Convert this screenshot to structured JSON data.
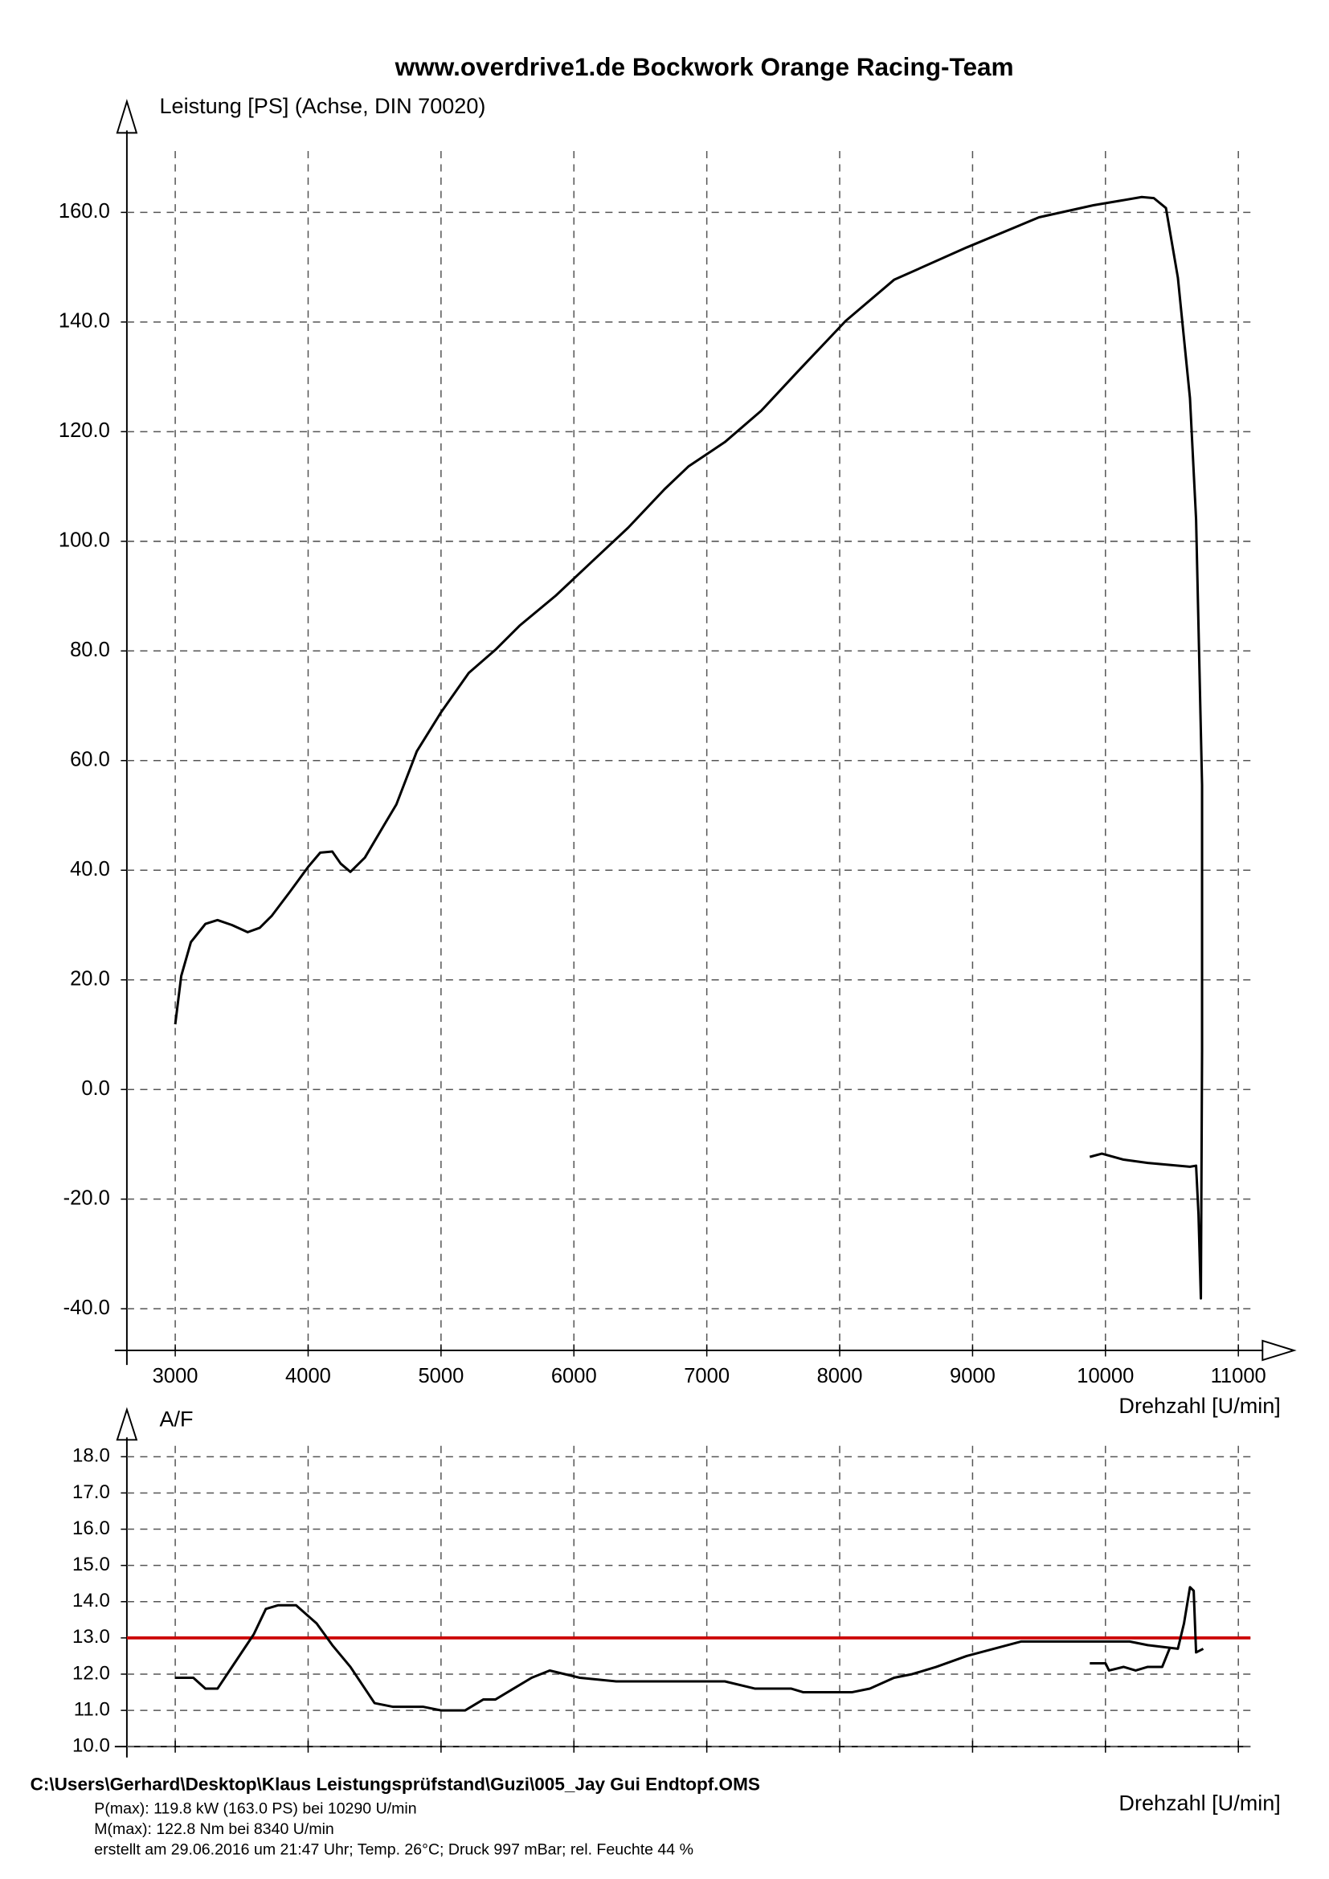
{
  "title": "www.overdrive1.de Bockwork Orange Racing-Team",
  "chart_data": [
    {
      "type": "line",
      "y_label": "Leistung [PS] (Achse, DIN 70020)",
      "x_label": "Drehzahl [U/min]",
      "color": "#000000",
      "grid": true,
      "x": [
        3000,
        3045,
        3118,
        3227,
        3318,
        3427,
        3545,
        3636,
        3727,
        3864,
        4000,
        4091,
        4182,
        4245,
        4318,
        4427,
        4573,
        4664,
        4818,
        5000,
        5209,
        5409,
        5591,
        5864,
        6136,
        6409,
        6682,
        6864,
        7136,
        7409,
        7682,
        8045,
        8409,
        8955,
        9500,
        9909,
        10273,
        10364,
        10455,
        10545,
        10636,
        10682,
        10727,
        10727,
        10718,
        10700,
        10682,
        10636,
        10318,
        10136,
        9973,
        9882
      ],
      "values": [
        11.9,
        20.7,
        26.9,
        30.2,
        30.9,
        30.0,
        28.7,
        29.5,
        31.7,
        36.1,
        40.6,
        43.2,
        43.4,
        41.2,
        39.7,
        42.3,
        48.3,
        52.0,
        61.7,
        68.8,
        76.0,
        80.2,
        84.6,
        90.1,
        96.3,
        102.5,
        109.5,
        113.7,
        118.1,
        123.8,
        130.9,
        140.2,
        147.7,
        153.6,
        159.1,
        161.3,
        162.8,
        162.6,
        160.8,
        148.1,
        126.1,
        104.0,
        55.5,
        7.1,
        -38.1,
        -22.7,
        -13.9,
        -14.1,
        -13.4,
        -12.8,
        -11.7,
        -12.3
      ],
      "xlim": [
        2636,
        11182
      ],
      "ylim": [
        -47.6,
        171.2
      ],
      "xticks": [
        3000,
        4000,
        5000,
        6000,
        7000,
        8000,
        9000,
        10000,
        11000
      ],
      "yticks": [
        {
          "value": -40,
          "label": "-40.0"
        },
        {
          "value": -20,
          "label": "-20.0"
        },
        {
          "value": 0,
          "label": "0.0"
        },
        {
          "value": 20,
          "label": "20.0"
        },
        {
          "value": 40,
          "label": "40.0"
        },
        {
          "value": 60,
          "label": "60.0"
        },
        {
          "value": 80,
          "label": "80.0"
        },
        {
          "value": 100,
          "label": "100.0"
        },
        {
          "value": 120,
          "label": "120.0"
        },
        {
          "value": 140,
          "label": "140.0"
        },
        {
          "value": 160,
          "label": "160.0"
        }
      ]
    },
    {
      "type": "line",
      "y_label": "A/F",
      "x_label": "Drehzahl [U/min]",
      "color": "#000000",
      "grid": true,
      "reference": 13,
      "reference_color": "#cc0000",
      "x": [
        3000,
        3136,
        3227,
        3318,
        3409,
        3591,
        3682,
        3773,
        3909,
        4064,
        4182,
        4318,
        4500,
        4636,
        4864,
        5000,
        5182,
        5318,
        5409,
        5545,
        5682,
        5818,
        6045,
        6318,
        7136,
        7364,
        7636,
        7727,
        8091,
        8227,
        8409,
        8545,
        8727,
        8955,
        9364,
        10182,
        10318,
        10545,
        10591,
        10636,
        10664,
        10682,
        10736,
        null,
        9882,
        10000,
        10027,
        10136,
        10227,
        10318,
        10427,
        10482
      ],
      "values": [
        11.9,
        11.9,
        11.6,
        11.6,
        12.1,
        13.1,
        13.8,
        13.9,
        13.9,
        13.4,
        12.8,
        12.2,
        11.2,
        11.1,
        11.1,
        11.0,
        11.0,
        11.3,
        11.3,
        11.6,
        11.9,
        12.1,
        11.9,
        11.8,
        11.8,
        11.6,
        11.6,
        11.5,
        11.5,
        11.6,
        11.9,
        12.0,
        12.2,
        12.5,
        12.9,
        12.9,
        12.8,
        12.7,
        13.4,
        14.4,
        14.3,
        12.6,
        12.7,
        null,
        12.3,
        12.3,
        12.1,
        12.2,
        12.1,
        12.2,
        12.2,
        12.7
      ],
      "xlim": [
        2636,
        11182
      ],
      "ylim": [
        10,
        18.3
      ],
      "xticks": [
        3000,
        4000,
        5000,
        6000,
        7000,
        8000,
        9000,
        10000,
        11000
      ],
      "yticks": [
        {
          "value": 10,
          "label": "10.0"
        },
        {
          "value": 11,
          "label": "11.0"
        },
        {
          "value": 12,
          "label": "12.0"
        },
        {
          "value": 13,
          "label": "13.0"
        },
        {
          "value": 14,
          "label": "14.0"
        },
        {
          "value": 15,
          "label": "15.0"
        },
        {
          "value": 16,
          "label": "16.0"
        },
        {
          "value": 17,
          "label": "17.0"
        },
        {
          "value": 18,
          "label": "18.0"
        }
      ]
    }
  ],
  "footer": {
    "file": "C:\\Users\\Gerhard\\Desktop\\Klaus Leistungsprüfstand\\Guzi\\005_Jay Gui Endtopf.OMS",
    "lines": [
      "P(max): 119.8 kW (163.0 PS) bei 10290 U/min",
      "M(max): 122.8 Nm bei 8340 U/min",
      "erstellt am 29.06.2016 um 21:47 Uhr; Temp. 26°C; Druck 997 mBar; rel. Feuchte 44 %"
    ]
  }
}
